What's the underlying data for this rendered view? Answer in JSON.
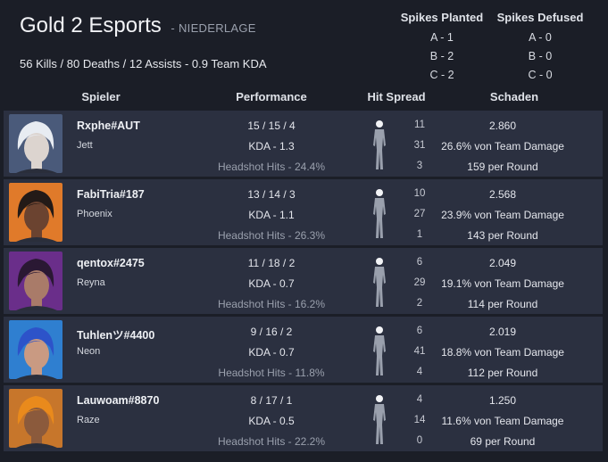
{
  "team": {
    "name": "Gold 2 Esports",
    "result": "- NIEDERLAGE",
    "summary": "56 Kills / 80 Deaths / 12 Assists - 0.9 Team KDA"
  },
  "spikes": {
    "planted_title": "Spikes Planted",
    "defused_title": "Spikes Defused",
    "planted": [
      "A - 1",
      "B - 2",
      "C - 2"
    ],
    "defused": [
      "A - 0",
      "B - 0",
      "C - 0"
    ]
  },
  "columns": {
    "player": "Spieler",
    "performance": "Performance",
    "hit_spread": "Hit Spread",
    "damage": "Schaden"
  },
  "players": [
    {
      "name": "Rxphe#AUT",
      "agent": "Jett",
      "kda_line": "15 / 15 / 4",
      "kda": "KDA - 1.3",
      "headshots": "Headshot Hits - 24.4%",
      "hits": [
        "11",
        "31",
        "3"
      ],
      "damage": "2.860",
      "team_damage": "26.6% von Team Damage",
      "per_round": "159 per Round",
      "avatar_colors": {
        "bg": "#4a5a7a",
        "hair": "#e8ecf2",
        "skin": "#dcd4cf"
      }
    },
    {
      "name": "FabiTria#187",
      "agent": "Phoenix",
      "kda_line": "13 / 14 / 3",
      "kda": "KDA - 1.1",
      "headshots": "Headshot Hits - 26.3%",
      "hits": [
        "10",
        "27",
        "1"
      ],
      "damage": "2.568",
      "team_damage": "23.9% von Team Damage",
      "per_round": "143 per Round",
      "avatar_colors": {
        "bg": "#e07a2a",
        "hair": "#231a17",
        "skin": "#6b4330"
      }
    },
    {
      "name": "qentox#2475",
      "agent": "Reyna",
      "kda_line": "11 / 18 / 2",
      "kda": "KDA - 0.7",
      "headshots": "Headshot Hits - 16.2%",
      "hits": [
        "6",
        "29",
        "2"
      ],
      "damage": "2.049",
      "team_damage": "19.1% von Team Damage",
      "per_round": "114 per Round",
      "avatar_colors": {
        "bg": "#6a2e8a",
        "hair": "#2a1833",
        "skin": "#a97b69"
      }
    },
    {
      "name": "Tuhlenツ#4400",
      "agent": "Neon",
      "kda_line": "9 / 16 / 2",
      "kda": "KDA - 0.7",
      "headshots": "Headshot Hits - 11.8%",
      "hits": [
        "6",
        "41",
        "4"
      ],
      "damage": "2.019",
      "team_damage": "18.8% von Team Damage",
      "per_round": "112 per Round",
      "avatar_colors": {
        "bg": "#2f7fd0",
        "hair": "#2d53c9",
        "skin": "#c99a82"
      }
    },
    {
      "name": "Lauwoam#8870",
      "agent": "Raze",
      "kda_line": "8 / 17 / 1",
      "kda": "KDA - 0.5",
      "headshots": "Headshot Hits - 22.2%",
      "hits": [
        "4",
        "14",
        "0"
      ],
      "damage": "1.250",
      "team_damage": "11.6% von Team Damage",
      "per_round": "69 per Round",
      "avatar_colors": {
        "bg": "#c7762b",
        "hair": "#e98a1c",
        "skin": "#8b5a3c"
      }
    }
  ]
}
